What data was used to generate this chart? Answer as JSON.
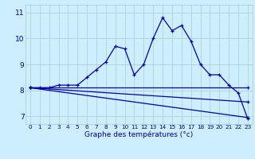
{
  "title": "Graphe des températures (°c)",
  "bg_color": "#cceeff",
  "line_color": "#0000aa",
  "grid_color": "#aacccc",
  "xlim": [
    -0.5,
    23.5
  ],
  "ylim": [
    6.7,
    11.3
  ],
  "xticks": [
    0,
    1,
    2,
    3,
    4,
    5,
    6,
    7,
    8,
    9,
    10,
    11,
    12,
    13,
    14,
    15,
    16,
    17,
    18,
    19,
    20,
    21,
    22,
    23
  ],
  "yticks": [
    7,
    8,
    9,
    10,
    11
  ],
  "main_y": [
    8.1,
    8.1,
    8.1,
    8.2,
    8.2,
    8.2,
    8.5,
    8.8,
    9.1,
    9.7,
    9.6,
    8.6,
    9.0,
    10.0,
    10.8,
    10.3,
    10.5,
    9.9,
    9.0,
    8.6,
    8.6,
    8.2,
    7.9,
    6.9
  ],
  "flat_line": [
    8.1,
    8.1
  ],
  "diag_line1": [
    8.1,
    7.55
  ],
  "diag_line2": [
    8.1,
    6.95
  ]
}
